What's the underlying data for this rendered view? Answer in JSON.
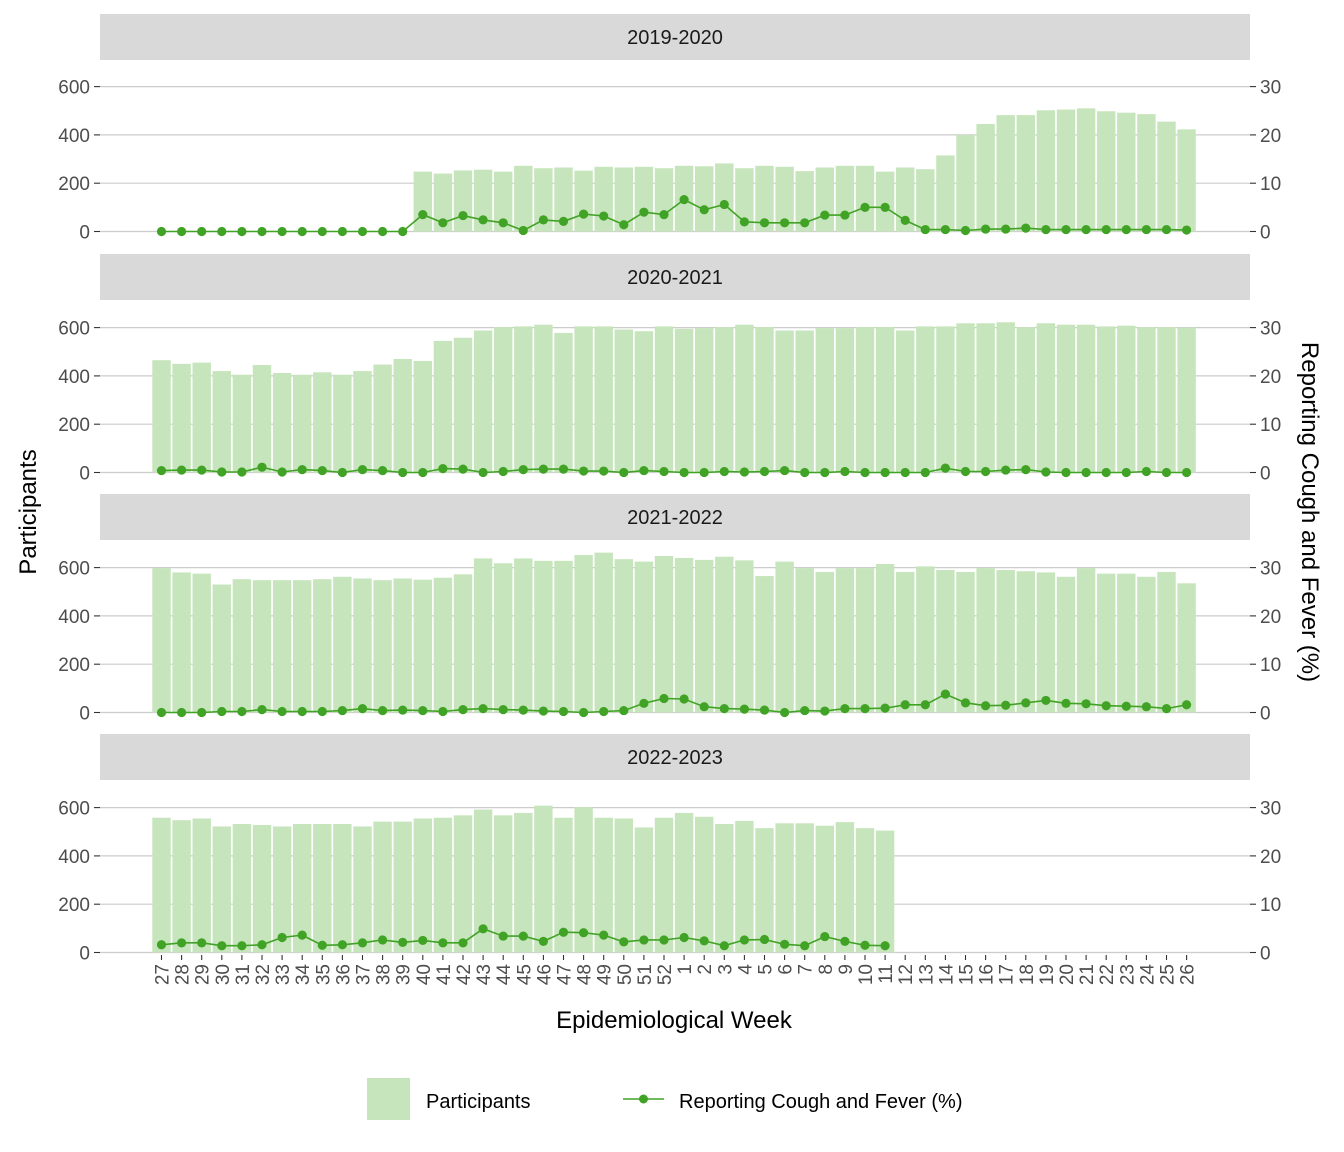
{
  "chart_data": {
    "type": "bar",
    "xlabel": "Epidemiological Week",
    "ylabel": "Participants",
    "y2label": "Reporting Cough and Fever (%)",
    "categories": [
      "27",
      "28",
      "29",
      "30",
      "31",
      "32",
      "33",
      "34",
      "35",
      "36",
      "37",
      "38",
      "39",
      "40",
      "41",
      "42",
      "43",
      "44",
      "45",
      "46",
      "47",
      "48",
      "49",
      "50",
      "51",
      "52",
      "1",
      "2",
      "3",
      "4",
      "5",
      "6",
      "7",
      "8",
      "9",
      "10",
      "11",
      "12",
      "13",
      "14",
      "15",
      "16",
      "17",
      "18",
      "19",
      "20",
      "21",
      "22",
      "23",
      "24",
      "25",
      "26"
    ],
    "ylim": [
      0,
      700
    ],
    "y2lim": [
      0,
      35
    ],
    "yticks": [
      "0",
      "200",
      "400",
      "600"
    ],
    "y2ticks": [
      "0",
      "10",
      "20",
      "30"
    ],
    "grid": true,
    "legend_position": "bottom",
    "legend": {
      "bar": "Participants",
      "line": "Reporting Cough and Fever (%)"
    },
    "colors": {
      "bar": "#c7e5bc",
      "line": "#41a325",
      "strip": "#d9d9d9",
      "grid": "#cccccc"
    },
    "panels": [
      {
        "label": "2019-2020",
        "participants": [
          null,
          null,
          null,
          null,
          null,
          null,
          null,
          null,
          null,
          null,
          null,
          null,
          null,
          248,
          240,
          253,
          256,
          248,
          272,
          262,
          265,
          252,
          268,
          265,
          268,
          262,
          272,
          270,
          282,
          262,
          272,
          268,
          250,
          265,
          272,
          272,
          248,
          265,
          258,
          315,
          400,
          445,
          482,
          482,
          502,
          505,
          510,
          498,
          492,
          486,
          455,
          423
        ],
        "cough_fever_pct": [
          0,
          0,
          0,
          0,
          0,
          0,
          0,
          0,
          0,
          0,
          0,
          0,
          0,
          3.5,
          1.8,
          3.3,
          2.4,
          1.8,
          0.2,
          2.4,
          2.1,
          3.6,
          3.2,
          1.4,
          4.0,
          3.5,
          6.6,
          4.5,
          5.6,
          2.0,
          1.8,
          1.8,
          1.8,
          3.4,
          3.4,
          5.0,
          5.0,
          2.3,
          0.4,
          0.4,
          0.2,
          0.5,
          0.5,
          0.7,
          0.4,
          0.4,
          0.4,
          0.4,
          0.4,
          0.4,
          0.4,
          0.3
        ]
      },
      {
        "label": "2020-2021",
        "participants": [
          465,
          450,
          455,
          420,
          405,
          445,
          412,
          405,
          415,
          405,
          420,
          447,
          470,
          462,
          545,
          558,
          588,
          602,
          605,
          612,
          578,
          605,
          605,
          592,
          585,
          605,
          595,
          598,
          602,
          612,
          602,
          588,
          588,
          598,
          598,
          602,
          602,
          588,
          605,
          605,
          618,
          618,
          622,
          602,
          618,
          612,
          612,
          605,
          608,
          602,
          602,
          600
        ],
        "cough_fever_pct": [
          0.4,
          0.5,
          0.5,
          0.1,
          0.1,
          1.1,
          0.1,
          0.6,
          0.4,
          0,
          0.6,
          0.4,
          0,
          0,
          0.8,
          0.7,
          0,
          0.2,
          0.6,
          0.7,
          0.7,
          0.3,
          0.3,
          0,
          0.4,
          0.2,
          0,
          0,
          0.2,
          0.1,
          0.2,
          0.4,
          0,
          0,
          0.2,
          0,
          0,
          0,
          0,
          0.9,
          0.2,
          0.2,
          0.5,
          0.6,
          0.1,
          0,
          0,
          0,
          0,
          0.2,
          0,
          0
        ]
      },
      {
        "label": "2021-2022",
        "participants": [
          598,
          580,
          575,
          530,
          552,
          548,
          548,
          548,
          552,
          562,
          555,
          548,
          555,
          550,
          558,
          572,
          638,
          618,
          638,
          628,
          628,
          652,
          662,
          635,
          625,
          648,
          640,
          632,
          645,
          630,
          565,
          625,
          598,
          582,
          598,
          598,
          615,
          582,
          605,
          590,
          582,
          598,
          590,
          585,
          580,
          562,
          598,
          575,
          575,
          562,
          582,
          535
        ],
        "cough_fever_pct": [
          0,
          0,
          0,
          0.2,
          0.2,
          0.6,
          0.2,
          0.2,
          0.2,
          0.4,
          0.8,
          0.4,
          0.5,
          0.4,
          0.2,
          0.6,
          0.8,
          0.6,
          0.5,
          0.3,
          0.2,
          0,
          0.2,
          0.4,
          1.9,
          2.9,
          2.8,
          1.2,
          0.8,
          0.7,
          0.5,
          0,
          0.4,
          0.3,
          0.8,
          0.8,
          0.9,
          1.6,
          1.6,
          3.8,
          2.0,
          1.4,
          1.5,
          2.0,
          2.5,
          1.9,
          1.8,
          1.4,
          1.3,
          1.2,
          0.8,
          1.6
        ]
      },
      {
        "label": "2022-2023",
        "participants": [
          558,
          548,
          555,
          522,
          532,
          528,
          522,
          532,
          532,
          532,
          522,
          542,
          542,
          555,
          558,
          568,
          592,
          568,
          578,
          608,
          558,
          602,
          558,
          555,
          518,
          558,
          578,
          562,
          532,
          545,
          515,
          535,
          535,
          525,
          540,
          515,
          505,
          null,
          null,
          null,
          null,
          null,
          null,
          null,
          null,
          null,
          null,
          null,
          null,
          null,
          null,
          null
        ],
        "cough_fever_pct": [
          1.6,
          2.0,
          2.0,
          1.4,
          1.4,
          1.6,
          3.1,
          3.6,
          1.5,
          1.6,
          2.0,
          2.6,
          2.1,
          2.5,
          2.0,
          2.0,
          4.9,
          3.4,
          3.4,
          2.3,
          4.2,
          4.1,
          3.6,
          2.2,
          2.6,
          2.6,
          3.1,
          2.4,
          1.4,
          2.6,
          2.7,
          1.7,
          1.4,
          3.3,
          2.3,
          1.5,
          1.4,
          null,
          null,
          null,
          null,
          null,
          null,
          null,
          null,
          null,
          null,
          null,
          null,
          null,
          null,
          null
        ]
      }
    ]
  }
}
